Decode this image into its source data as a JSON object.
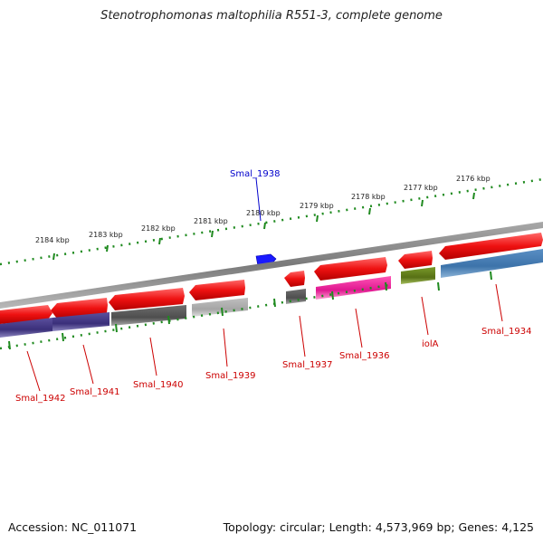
{
  "title": "Stenotrophomonas maltophilia R551-3, complete genome",
  "footer": {
    "accession": "Accession: NC_011071",
    "topology": "Topology: circular; Length: 4,573,969 bp; Genes: 4,125"
  },
  "kbp_labels": [
    "2184 kbp",
    "2183 kbp",
    "2182 kbp",
    "2181 kbp",
    "2180 kbp",
    "2179 kbp",
    "2178 kbp",
    "2177 kbp",
    "2176 kbp"
  ],
  "gene_labels": {
    "smal_1938": "Smal_1938",
    "smal_1942": "Smal_1942",
    "smal_1941": "Smal_1941",
    "smal_1940": "Smal_1940",
    "smal_1939": "Smal_1939",
    "smal_1937": "Smal_1937",
    "smal_1936": "Smal_1936",
    "iola": "iolA",
    "smal_1934": "Smal_1934"
  },
  "colors": {
    "backbone": "#8a8a8a",
    "gene_red": "#ee1111",
    "tick_green": "#1f8a1f",
    "label_red": "#cc0000",
    "label_blue": "#0000cc",
    "gene_blue": "#1a1aff"
  }
}
